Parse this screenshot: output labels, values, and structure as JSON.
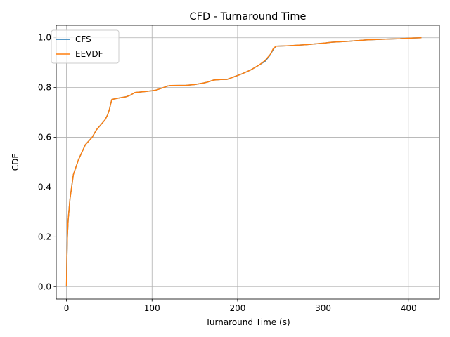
{
  "chart_data": {
    "type": "line",
    "title": "CFD - Turnaround Time",
    "xlabel": "Turnaround Time (s)",
    "ylabel": "CDF",
    "xlim": [
      -12,
      436
    ],
    "ylim": [
      -0.05,
      1.05
    ],
    "xticks": [
      0,
      100,
      200,
      300,
      400
    ],
    "yticks": [
      0.0,
      0.2,
      0.4,
      0.6,
      0.8,
      1.0
    ],
    "xtick_labels": [
      "0",
      "100",
      "200",
      "300",
      "400"
    ],
    "ytick_labels": [
      "0.0",
      "0.2",
      "0.4",
      "0.6",
      "0.8",
      "1.0"
    ],
    "grid": true,
    "legend_position": "top-left",
    "series": [
      {
        "name": "CFS",
        "color": "#1f77b4",
        "points": [
          [
            0,
            0
          ],
          [
            0.5,
            0.12
          ],
          [
            1,
            0.2
          ],
          [
            2,
            0.27
          ],
          [
            3,
            0.31
          ],
          [
            4,
            0.35
          ],
          [
            6,
            0.4
          ],
          [
            8,
            0.45
          ],
          [
            10,
            0.47
          ],
          [
            12,
            0.49
          ],
          [
            14,
            0.51
          ],
          [
            18,
            0.54
          ],
          [
            22,
            0.57
          ],
          [
            26,
            0.585
          ],
          [
            30,
            0.6
          ],
          [
            35,
            0.63
          ],
          [
            40,
            0.65
          ],
          [
            45,
            0.67
          ],
          [
            48,
            0.69
          ],
          [
            50,
            0.71
          ],
          [
            52,
            0.74
          ],
          [
            53,
            0.752
          ],
          [
            60,
            0.757
          ],
          [
            70,
            0.763
          ],
          [
            75,
            0.77
          ],
          [
            80,
            0.78
          ],
          [
            90,
            0.783
          ],
          [
            100,
            0.787
          ],
          [
            105,
            0.79
          ],
          [
            112,
            0.798
          ],
          [
            118,
            0.806
          ],
          [
            122,
            0.808
          ],
          [
            140,
            0.809
          ],
          [
            150,
            0.812
          ],
          [
            160,
            0.818
          ],
          [
            165,
            0.822
          ],
          [
            172,
            0.83
          ],
          [
            180,
            0.832
          ],
          [
            188,
            0.833
          ],
          [
            195,
            0.842
          ],
          [
            205,
            0.855
          ],
          [
            215,
            0.87
          ],
          [
            225,
            0.89
          ],
          [
            232,
            0.905
          ],
          [
            238,
            0.93
          ],
          [
            242,
            0.955
          ],
          [
            245,
            0.966
          ],
          [
            260,
            0.968
          ],
          [
            280,
            0.972
          ],
          [
            300,
            0.978
          ],
          [
            310,
            0.982
          ],
          [
            330,
            0.986
          ],
          [
            350,
            0.991
          ],
          [
            370,
            0.994
          ],
          [
            390,
            0.996
          ],
          [
            405,
            0.999
          ],
          [
            415,
            1.0
          ]
        ]
      },
      {
        "name": "EEVDF",
        "color": "#ff7f0e",
        "points": [
          [
            0,
            0
          ],
          [
            0.5,
            0.12
          ],
          [
            1,
            0.2
          ],
          [
            2,
            0.27
          ],
          [
            3,
            0.31
          ],
          [
            4,
            0.35
          ],
          [
            6,
            0.4
          ],
          [
            8,
            0.45
          ],
          [
            10,
            0.47
          ],
          [
            12,
            0.49
          ],
          [
            14,
            0.51
          ],
          [
            18,
            0.54
          ],
          [
            22,
            0.57
          ],
          [
            26,
            0.585
          ],
          [
            30,
            0.6
          ],
          [
            35,
            0.63
          ],
          [
            40,
            0.65
          ],
          [
            45,
            0.67
          ],
          [
            48,
            0.69
          ],
          [
            50,
            0.71
          ],
          [
            52,
            0.74
          ],
          [
            53,
            0.752
          ],
          [
            60,
            0.757
          ],
          [
            70,
            0.763
          ],
          [
            75,
            0.77
          ],
          [
            80,
            0.78
          ],
          [
            90,
            0.783
          ],
          [
            100,
            0.787
          ],
          [
            105,
            0.79
          ],
          [
            112,
            0.798
          ],
          [
            118,
            0.806
          ],
          [
            122,
            0.808
          ],
          [
            140,
            0.809
          ],
          [
            150,
            0.812
          ],
          [
            160,
            0.818
          ],
          [
            165,
            0.822
          ],
          [
            172,
            0.83
          ],
          [
            180,
            0.832
          ],
          [
            188,
            0.833
          ],
          [
            195,
            0.842
          ],
          [
            205,
            0.855
          ],
          [
            215,
            0.87
          ],
          [
            225,
            0.89
          ],
          [
            232,
            0.908
          ],
          [
            238,
            0.932
          ],
          [
            242,
            0.958
          ],
          [
            245,
            0.966
          ],
          [
            260,
            0.968
          ],
          [
            280,
            0.972
          ],
          [
            300,
            0.978
          ],
          [
            310,
            0.982
          ],
          [
            330,
            0.986
          ],
          [
            350,
            0.991
          ],
          [
            370,
            0.994
          ],
          [
            390,
            0.996
          ],
          [
            405,
            0.999
          ],
          [
            415,
            1.0
          ]
        ]
      }
    ]
  }
}
